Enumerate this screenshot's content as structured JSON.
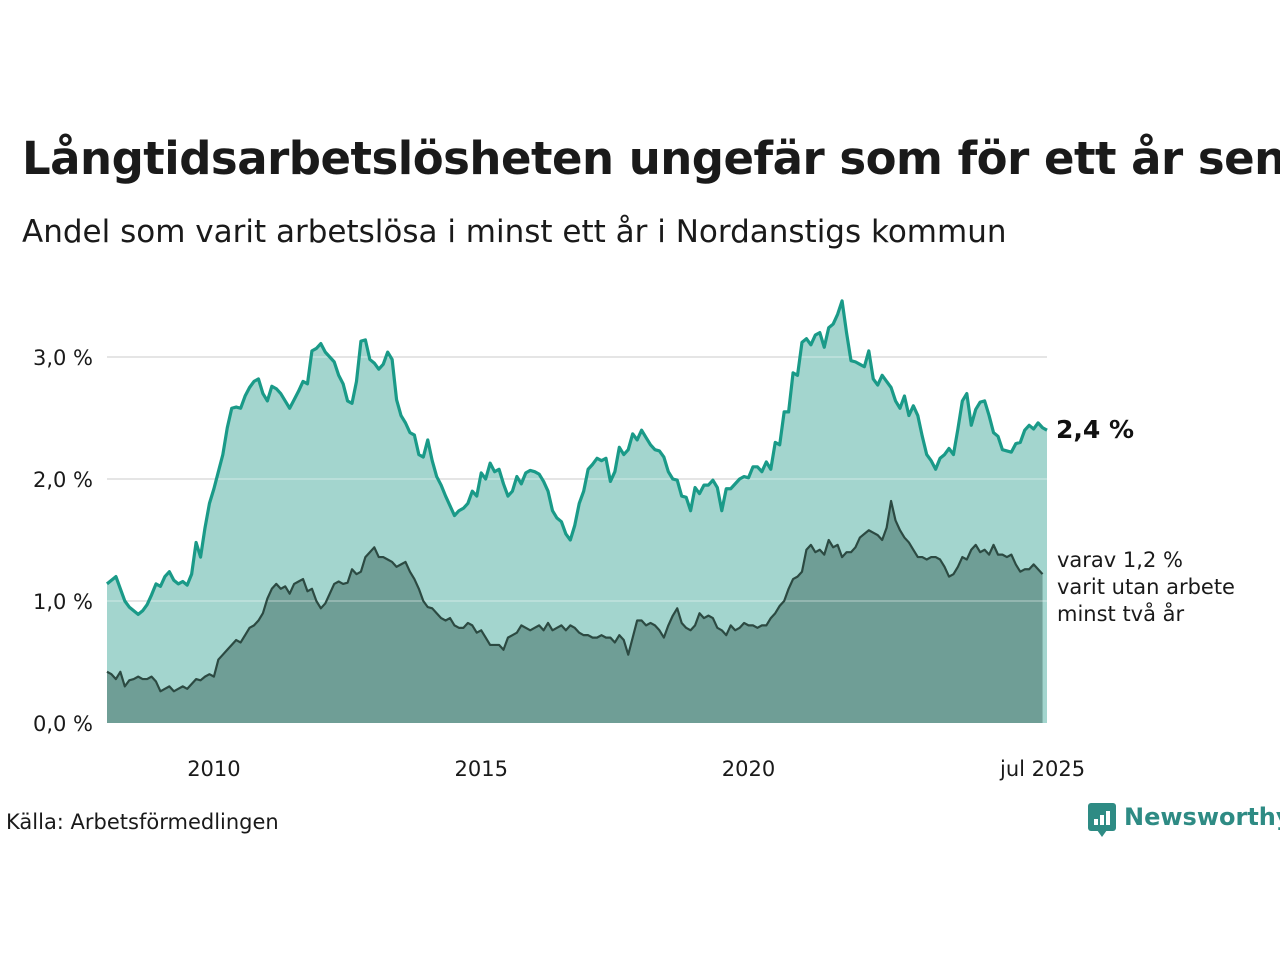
{
  "header": {
    "title": "Långtidsarbetslösheten ungefär som för ett år sen",
    "subtitle": "Andel som varit arbetslösa i minst ett år i Nordanstigs kommun"
  },
  "footer": {
    "source": "Källa: Arbetsförmedlingen",
    "brand": "Newsworthy"
  },
  "colors": {
    "main_line": "#1a9a88",
    "main_fill": "#a3d5ce",
    "sub_line": "#2c4a42",
    "sub_fill": "#6f9e96",
    "grid": "#dddddd"
  },
  "chart_data": {
    "type": "area",
    "x_start": "2008-01",
    "x_frequency": "monthly",
    "x_tick_labels": [
      "2010",
      "2015",
      "2020",
      "jul 2025"
    ],
    "x_tick_dates": [
      "2010-01",
      "2015-01",
      "2020-01",
      "2025-07"
    ],
    "y_tick_labels": [
      "0,0 %",
      "1,0 %",
      "2,0 %",
      "3,0 %"
    ],
    "ylim": [
      0,
      3.0
    ],
    "grid": true,
    "end_labels": {
      "main": "2,4 %",
      "sub": [
        "varav 1,2 %",
        "varit utan arbete",
        "minst två år"
      ]
    },
    "series": [
      {
        "key": "main",
        "values": [
          1.14,
          1.17,
          1.2,
          1.1,
          1.0,
          0.95,
          0.92,
          0.89,
          0.92,
          0.97,
          1.05,
          1.14,
          1.12,
          1.2,
          1.24,
          1.17,
          1.14,
          1.16,
          1.13,
          1.22,
          1.48,
          1.36,
          1.6,
          1.8,
          1.92,
          2.06,
          2.2,
          2.42,
          2.58,
          2.59,
          2.58,
          2.68,
          2.75,
          2.8,
          2.82,
          2.7,
          2.64,
          2.76,
          2.74,
          2.7,
          2.64,
          2.58,
          2.65,
          2.72,
          2.8,
          2.78,
          3.05,
          3.07,
          3.11,
          3.04,
          3.0,
          2.96,
          2.85,
          2.78,
          2.64,
          2.62,
          2.8,
          3.13,
          3.14,
          2.98,
          2.95,
          2.9,
          2.94,
          3.04,
          2.98,
          2.65,
          2.52,
          2.46,
          2.38,
          2.36,
          2.2,
          2.18,
          2.32,
          2.15,
          2.02,
          1.95,
          1.86,
          1.78,
          1.7,
          1.74,
          1.76,
          1.8,
          1.9,
          1.86,
          2.05,
          2.0,
          2.13,
          2.06,
          2.08,
          1.96,
          1.86,
          1.9,
          2.02,
          1.96,
          2.05,
          2.07,
          2.06,
          2.04,
          1.98,
          1.9,
          1.74,
          1.68,
          1.65,
          1.55,
          1.5,
          1.62,
          1.8,
          1.9,
          2.08,
          2.12,
          2.17,
          2.15,
          2.17,
          1.98,
          2.06,
          2.26,
          2.2,
          2.24,
          2.37,
          2.32,
          2.4,
          2.34,
          2.28,
          2.24,
          2.23,
          2.18,
          2.06,
          2.0,
          1.99,
          1.86,
          1.85,
          1.74,
          1.93,
          1.88,
          1.95,
          1.95,
          1.99,
          1.93,
          1.74,
          1.92,
          1.92,
          1.96,
          2.0,
          2.02,
          2.01,
          2.1,
          2.1,
          2.06,
          2.14,
          2.08,
          2.3,
          2.28,
          2.55,
          2.55,
          2.87,
          2.85,
          3.12,
          3.15,
          3.1,
          3.18,
          3.2,
          3.08,
          3.24,
          3.27,
          3.35,
          3.46,
          3.2,
          2.97,
          2.96,
          2.94,
          2.92,
          3.05,
          2.82,
          2.77,
          2.85,
          2.8,
          2.75,
          2.64,
          2.58,
          2.68,
          2.52,
          2.6,
          2.52,
          2.35,
          2.2,
          2.15,
          2.08,
          2.17,
          2.2,
          2.25,
          2.2,
          2.41,
          2.64,
          2.7,
          2.44,
          2.57,
          2.63,
          2.64,
          2.52,
          2.38,
          2.35,
          2.24,
          2.23,
          2.22,
          2.29,
          2.3,
          2.4,
          2.44,
          2.41,
          2.46,
          2.42,
          2.4
        ]
      },
      {
        "key": "sub",
        "values": [
          0.42,
          0.4,
          0.36,
          0.42,
          0.3,
          0.35,
          0.36,
          0.38,
          0.36,
          0.36,
          0.38,
          0.34,
          0.26,
          0.28,
          0.3,
          0.26,
          0.28,
          0.3,
          0.28,
          0.32,
          0.36,
          0.35,
          0.38,
          0.4,
          0.38,
          0.52,
          0.56,
          0.6,
          0.64,
          0.68,
          0.66,
          0.72,
          0.78,
          0.8,
          0.84,
          0.9,
          1.02,
          1.1,
          1.14,
          1.1,
          1.12,
          1.06,
          1.14,
          1.16,
          1.18,
          1.08,
          1.1,
          1.0,
          0.94,
          0.98,
          1.06,
          1.14,
          1.16,
          1.14,
          1.15,
          1.26,
          1.22,
          1.24,
          1.36,
          1.4,
          1.44,
          1.36,
          1.36,
          1.34,
          1.32,
          1.28,
          1.3,
          1.32,
          1.24,
          1.18,
          1.1,
          1.0,
          0.95,
          0.94,
          0.9,
          0.86,
          0.84,
          0.86,
          0.8,
          0.78,
          0.78,
          0.82,
          0.8,
          0.74,
          0.76,
          0.7,
          0.64,
          0.64,
          0.64,
          0.6,
          0.7,
          0.72,
          0.74,
          0.8,
          0.78,
          0.76,
          0.78,
          0.8,
          0.76,
          0.82,
          0.76,
          0.78,
          0.8,
          0.76,
          0.8,
          0.78,
          0.74,
          0.72,
          0.72,
          0.7,
          0.7,
          0.72,
          0.7,
          0.7,
          0.66,
          0.72,
          0.68,
          0.56,
          0.7,
          0.84,
          0.84,
          0.8,
          0.82,
          0.8,
          0.76,
          0.7,
          0.8,
          0.88,
          0.94,
          0.82,
          0.78,
          0.76,
          0.8,
          0.9,
          0.86,
          0.88,
          0.86,
          0.78,
          0.76,
          0.72,
          0.8,
          0.76,
          0.78,
          0.82,
          0.8,
          0.8,
          0.78,
          0.8,
          0.8,
          0.86,
          0.9,
          0.96,
          1.0,
          1.1,
          1.18,
          1.2,
          1.24,
          1.42,
          1.46,
          1.4,
          1.42,
          1.38,
          1.5,
          1.44,
          1.46,
          1.36,
          1.4,
          1.4,
          1.44,
          1.52,
          1.55,
          1.58,
          1.56,
          1.54,
          1.5,
          1.6,
          1.82,
          1.66,
          1.58,
          1.52,
          1.48,
          1.42,
          1.36,
          1.36,
          1.34,
          1.36,
          1.36,
          1.34,
          1.28,
          1.2,
          1.22,
          1.28,
          1.36,
          1.34,
          1.42,
          1.46,
          1.4,
          1.42,
          1.38,
          1.46,
          1.38,
          1.38,
          1.36,
          1.38,
          1.3,
          1.24,
          1.26,
          1.26,
          1.3,
          1.26,
          1.22
        ]
      }
    ]
  }
}
